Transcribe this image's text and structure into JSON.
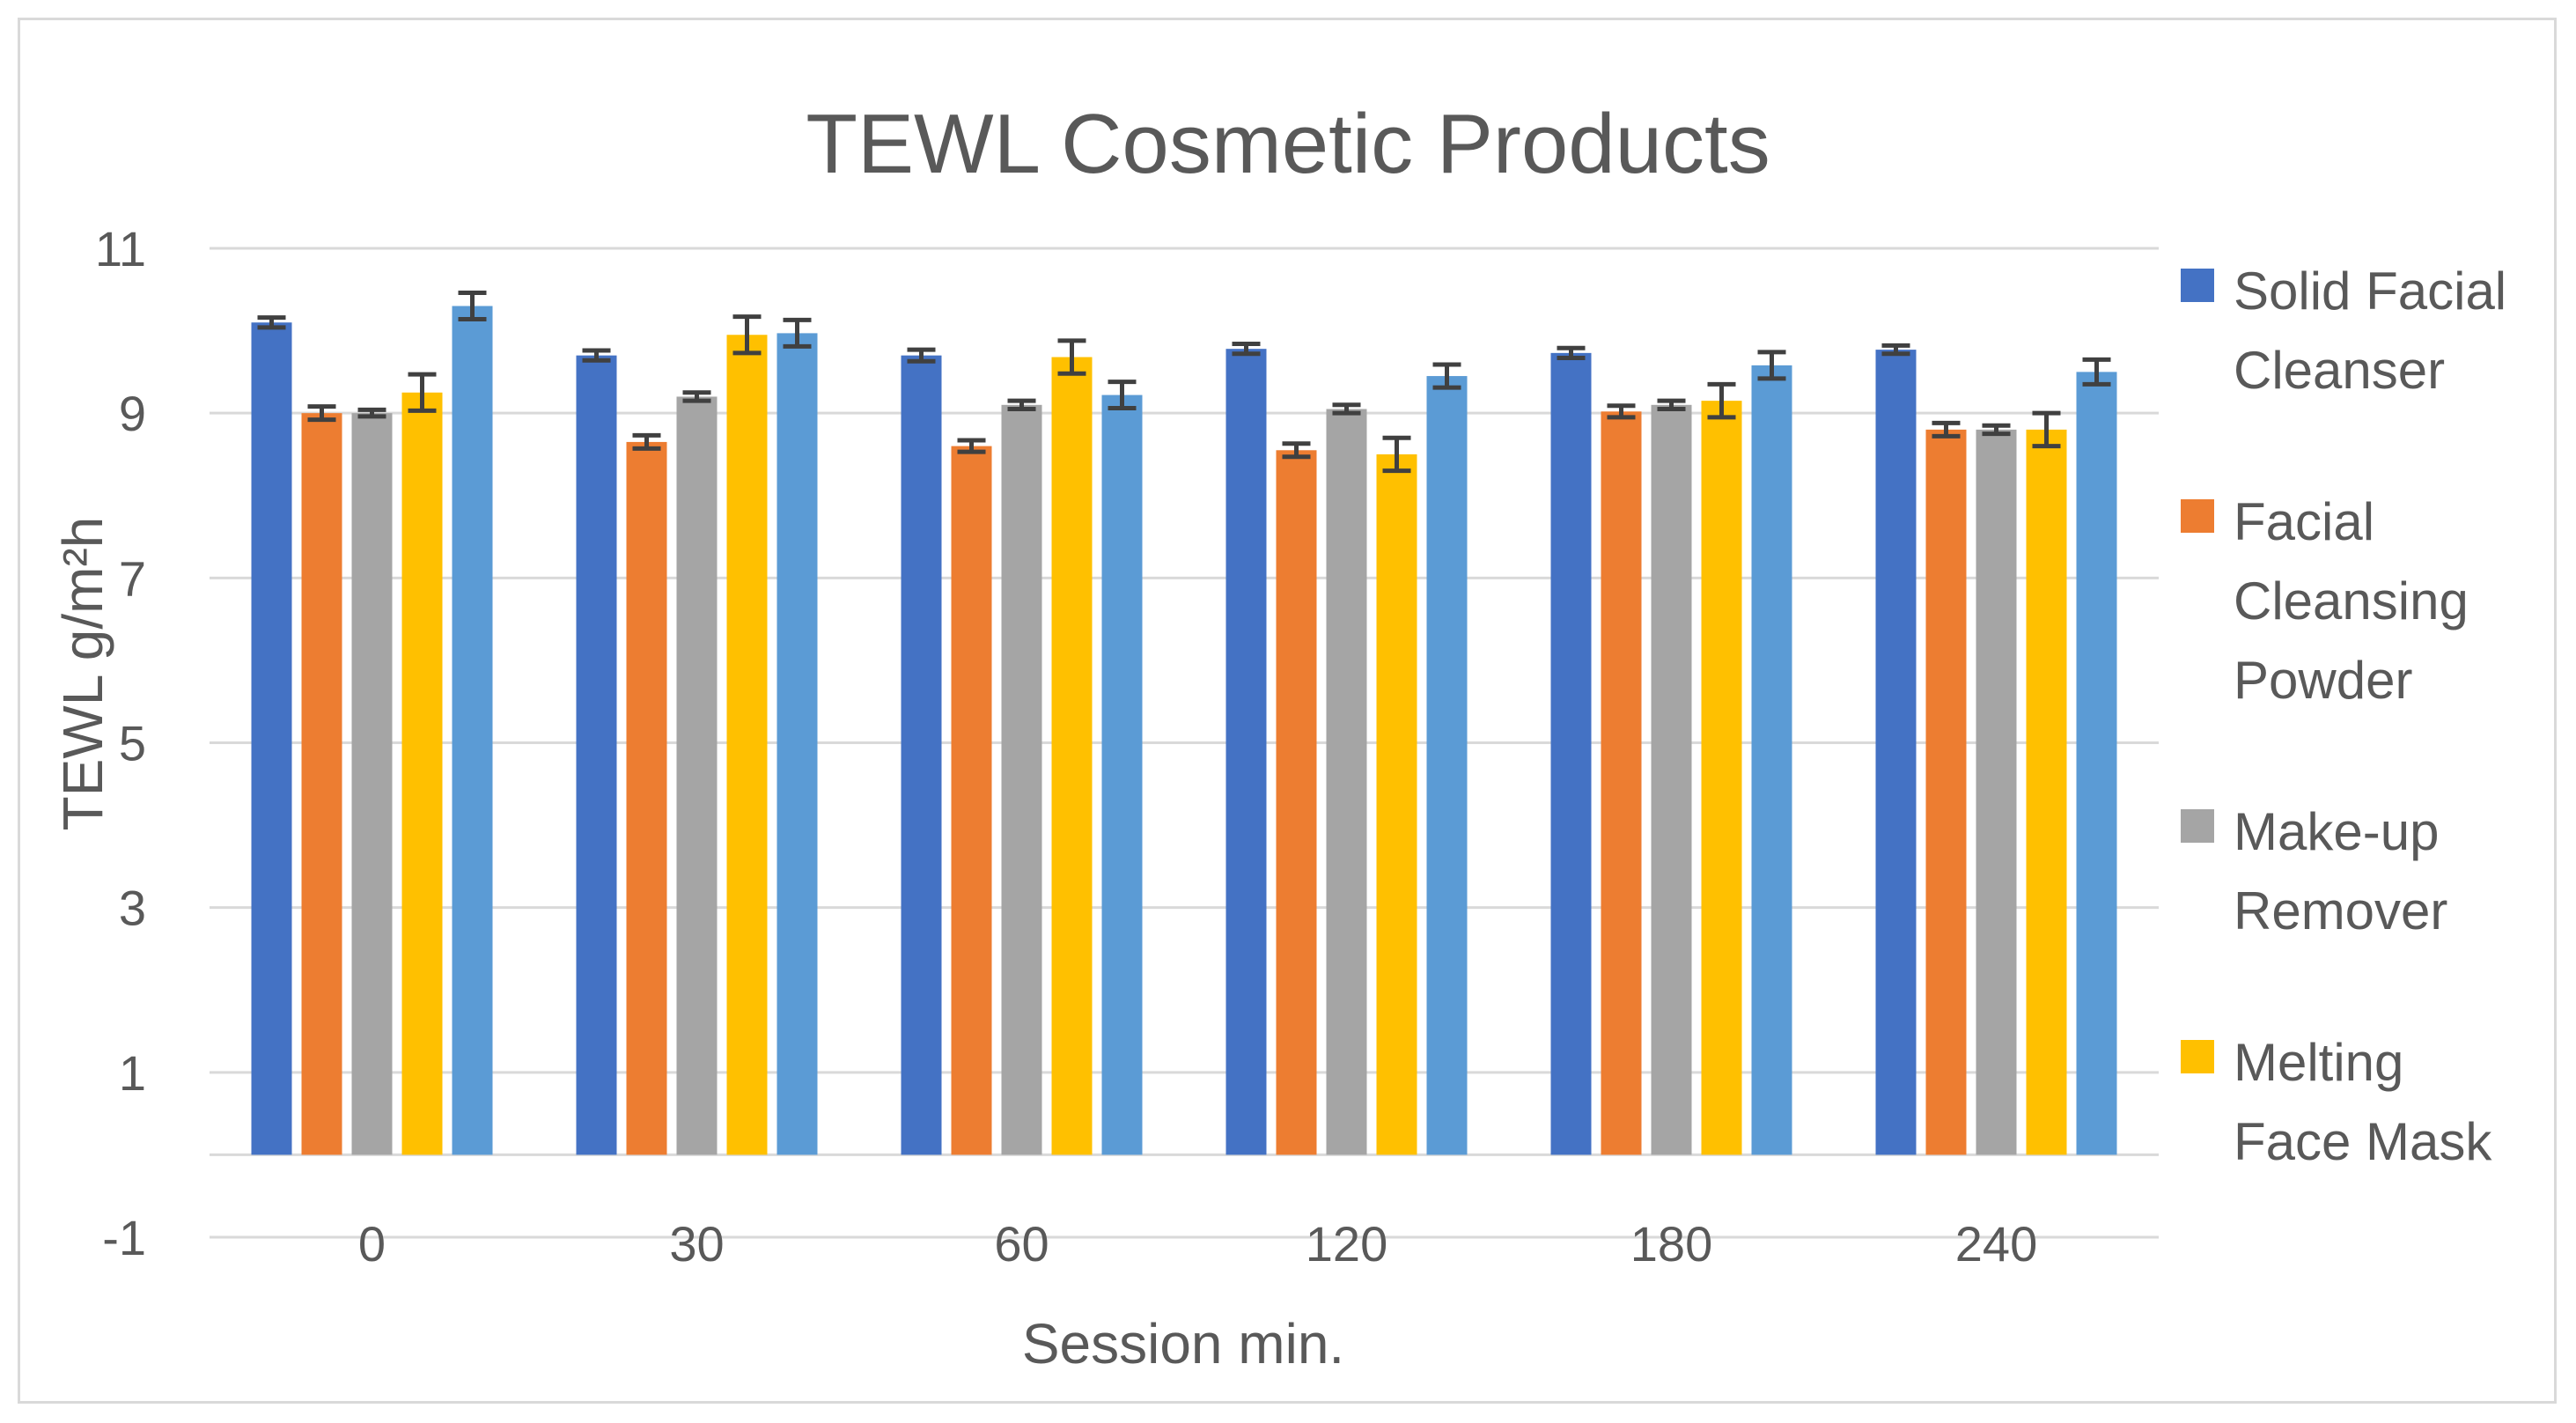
{
  "chart_data": {
    "type": "bar",
    "title": "TEWL Cosmetic Products",
    "xlabel": "Session min.",
    "ylabel": "TEWL g/m²h",
    "categories": [
      "0",
      "30",
      "60",
      "120",
      "180",
      "240"
    ],
    "ylim": [
      -1,
      11
    ],
    "yticks": [
      "11",
      "9",
      "7",
      "5",
      "3",
      "1",
      "-1"
    ],
    "ytick_values": [
      11,
      9,
      7,
      5,
      3,
      1,
      -1
    ],
    "bar_baseline": 0,
    "grid": true,
    "legend_position": "right",
    "series": [
      {
        "name": "Solid Facial Cleanser",
        "legend_lines": [
          "Solid Facial",
          "Cleanser"
        ],
        "color": "#4472c4",
        "values": [
          10.1,
          9.7,
          9.7,
          9.78,
          9.73,
          9.77
        ],
        "errors": [
          0.06,
          0.06,
          0.07,
          0.06,
          0.06,
          0.05
        ]
      },
      {
        "name": "Facial Cleansing Powder",
        "legend_lines": [
          "Facial",
          "Cleansing",
          "Powder"
        ],
        "color": "#ed7d31",
        "values": [
          9.0,
          8.65,
          8.6,
          8.55,
          9.02,
          8.8
        ],
        "errors": [
          0.08,
          0.08,
          0.07,
          0.08,
          0.07,
          0.08
        ]
      },
      {
        "name": "Make-up Remover",
        "legend_lines": [
          "Make-up",
          "Remover"
        ],
        "color": "#a5a5a5",
        "values": [
          9.0,
          9.2,
          9.1,
          9.05,
          9.1,
          8.8
        ],
        "errors": [
          0.04,
          0.05,
          0.05,
          0.05,
          0.05,
          0.05
        ]
      },
      {
        "name": "Melting Face Mask",
        "legend_lines": [
          "Melting",
          "Face Mask"
        ],
        "color": "#ffc000",
        "values": [
          9.25,
          9.95,
          9.68,
          8.5,
          9.15,
          8.8
        ],
        "errors": [
          0.22,
          0.22,
          0.2,
          0.2,
          0.2,
          0.2
        ]
      },
      {
        "name": "",
        "legend_lines": [],
        "color": "#5b9bd5",
        "values": [
          10.3,
          9.97,
          9.22,
          9.45,
          9.58,
          9.5
        ],
        "errors": [
          0.16,
          0.16,
          0.16,
          0.14,
          0.16,
          0.15
        ]
      }
    ]
  }
}
